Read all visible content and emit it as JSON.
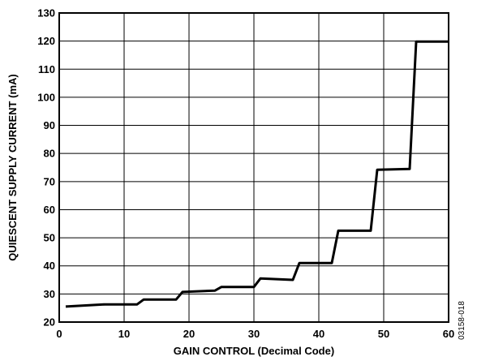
{
  "chart_data": {
    "type": "line",
    "xlabel": "GAIN CONTROL (Decimal Code)",
    "ylabel": "QUIESCENT SUPPLY CURRENT (mA)",
    "xlim": [
      0,
      60
    ],
    "ylim": [
      20,
      130
    ],
    "x_ticks": [
      0,
      10,
      20,
      30,
      40,
      50,
      60
    ],
    "y_ticks": [
      20,
      30,
      40,
      50,
      60,
      70,
      80,
      90,
      100,
      110,
      120,
      130
    ],
    "grid": true,
    "series": [
      {
        "x": [
          1,
          7,
          12,
          13,
          18,
          19,
          24,
          25,
          30,
          31,
          36,
          37,
          42,
          43,
          48,
          49,
          54,
          55,
          60
        ],
        "y": [
          25.5,
          26.3,
          26.3,
          28.0,
          28.0,
          30.7,
          31.2,
          32.5,
          32.5,
          35.5,
          35.0,
          41.0,
          41.0,
          52.5,
          52.5,
          74.2,
          74.5,
          119.8,
          119.8
        ]
      }
    ],
    "figure_id": "03158-018"
  }
}
